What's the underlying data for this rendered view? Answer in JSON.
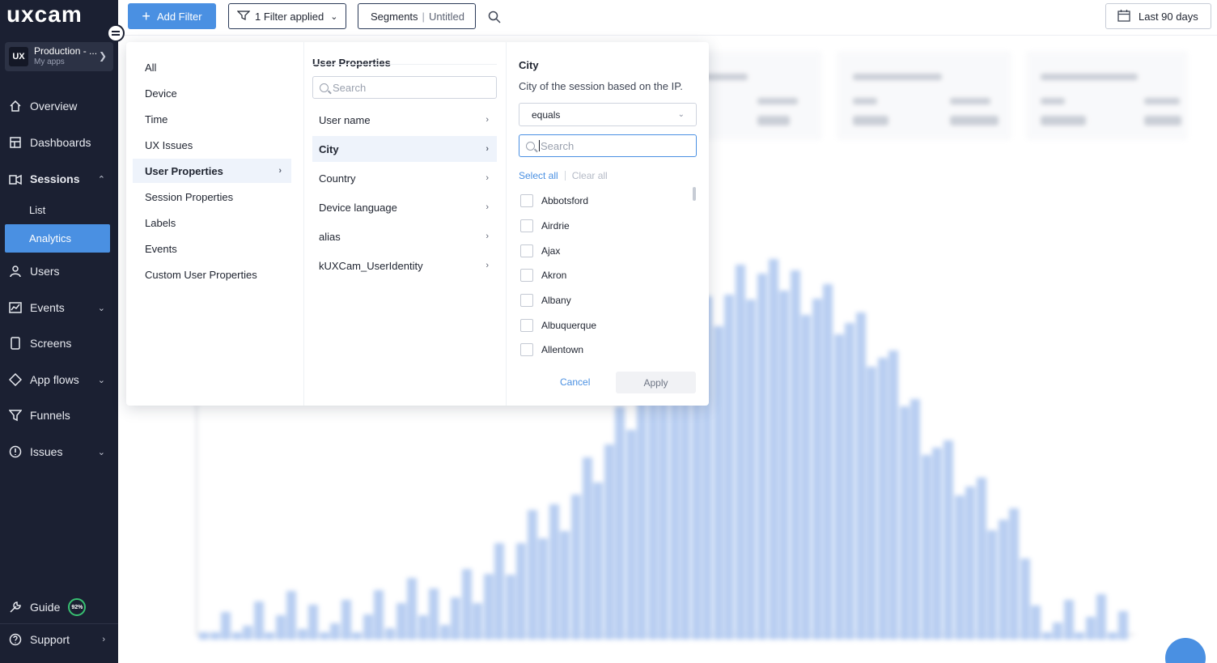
{
  "sidebar": {
    "logo": "uxcam",
    "app": {
      "badge": "UX",
      "name": "Production - ...",
      "sub": "My apps"
    },
    "nav": {
      "overview": "Overview",
      "dashboards": "Dashboards",
      "sessions": "Sessions",
      "list": "List",
      "analytics": "Analytics",
      "users": "Users",
      "events": "Events",
      "screens": "Screens",
      "app_flows": "App flows",
      "funnels": "Funnels",
      "issues": "Issues",
      "guide": "Guide",
      "guide_progress": "92%",
      "support": "Support"
    }
  },
  "topbar": {
    "add_filter": "Add Filter",
    "filters_applied": "1 Filter applied",
    "segments_label": "Segments",
    "segments_value": "Untitled",
    "date_range": "Last 90 days"
  },
  "filter_panel": {
    "categories": [
      "All",
      "Device",
      "Time",
      "UX Issues",
      "User Properties",
      "Session Properties",
      "Labels",
      "Events",
      "Custom User Properties"
    ],
    "selected_category": "User Properties",
    "properties_title": "User Properties",
    "properties_search_placeholder": "Search",
    "properties": [
      "User name",
      "City",
      "Country",
      "Device language",
      "alias",
      "kUXCam_UserIdentity"
    ],
    "selected_property": "City",
    "detail_title": "City",
    "detail_description": "City of the session based on the IP.",
    "operator": "equals",
    "values_search_placeholder": "Search",
    "select_all": "Select all",
    "clear_all": "Clear all",
    "options": [
      "Abbotsford",
      "Airdrie",
      "Ajax",
      "Akron",
      "Albany",
      "Albuquerque",
      "Allentown"
    ],
    "cancel": "Cancel",
    "apply": "Apply"
  },
  "colors": {
    "sidebar_bg": "#1b2032",
    "accent": "#4a90e2",
    "active_nav": "#4a90e2"
  }
}
